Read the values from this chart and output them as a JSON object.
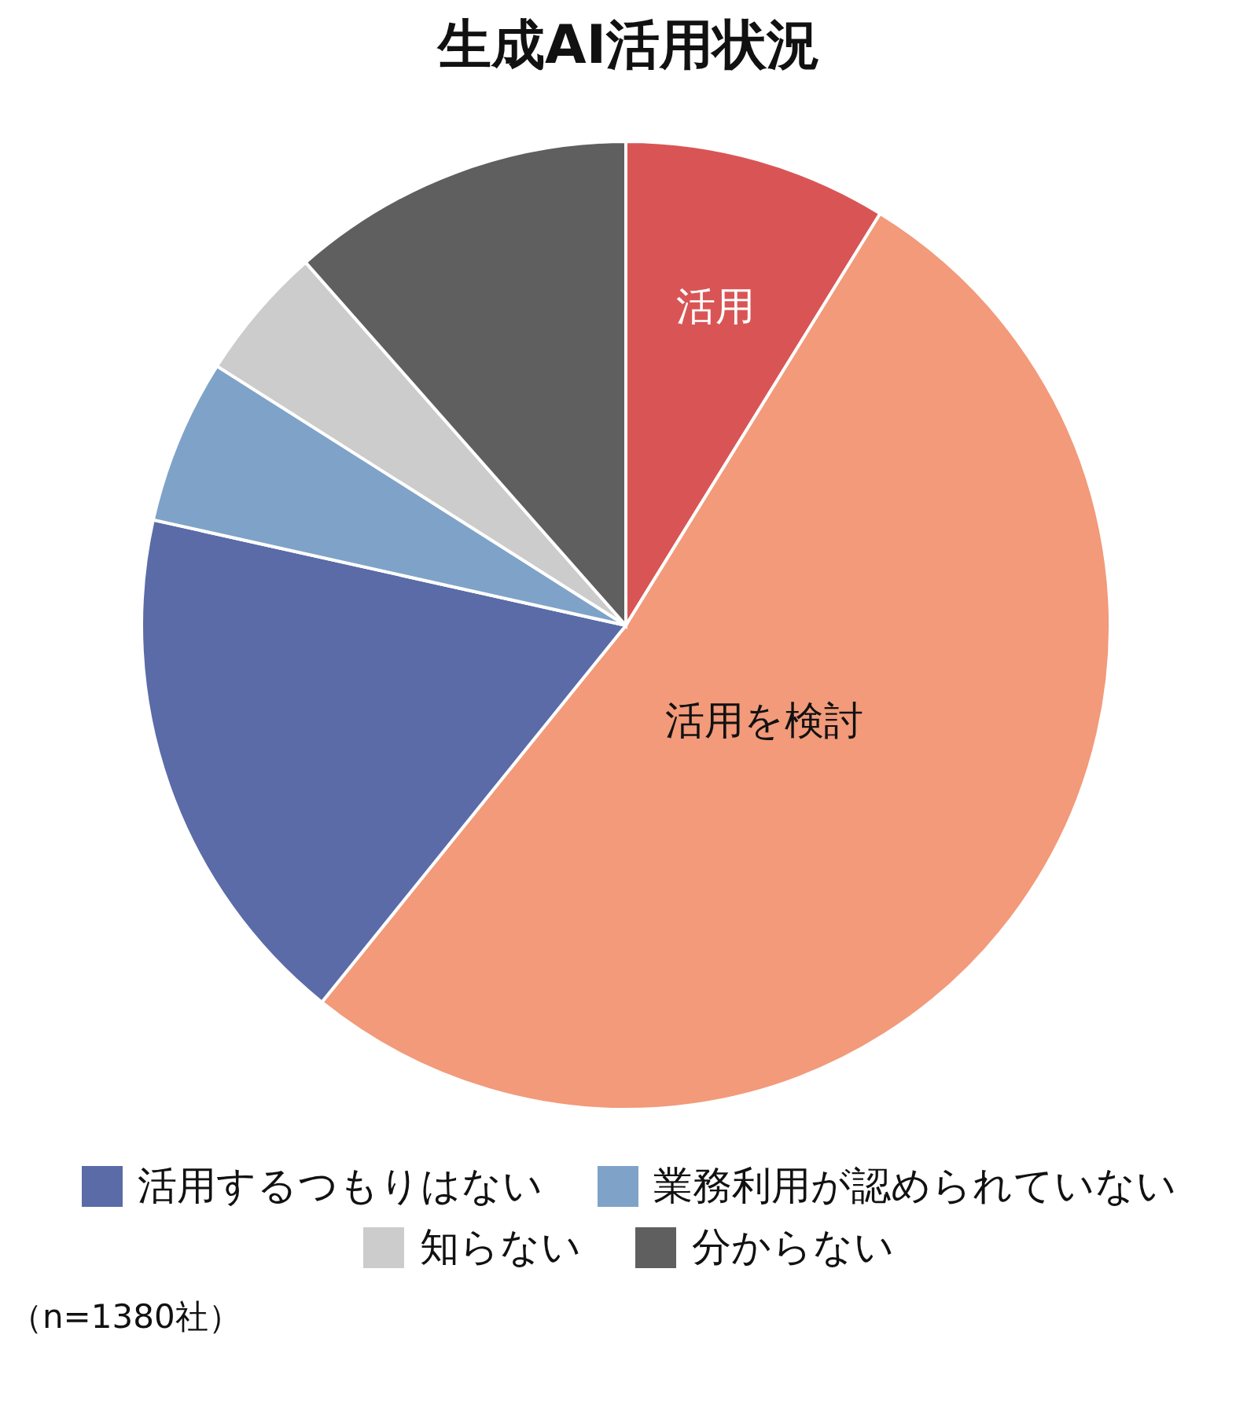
{
  "chart_data": {
    "type": "pie",
    "title": "生成AI活用状況",
    "categories": [
      "活用",
      "活用を検討",
      "活用するつもりはない",
      "業務利用が認められていない",
      "知らない",
      "分からない"
    ],
    "values": [
      8.8,
      52.0,
      17.7,
      5.5,
      4.5,
      11.5
    ],
    "colors": [
      "#d95555",
      "#f29a7a",
      "#5a6ba8",
      "#7fa3c8",
      "#cccccc",
      "#5f5f5f"
    ],
    "legend": "bottom",
    "annotations": [
      "（n=1380社）"
    ]
  }
}
